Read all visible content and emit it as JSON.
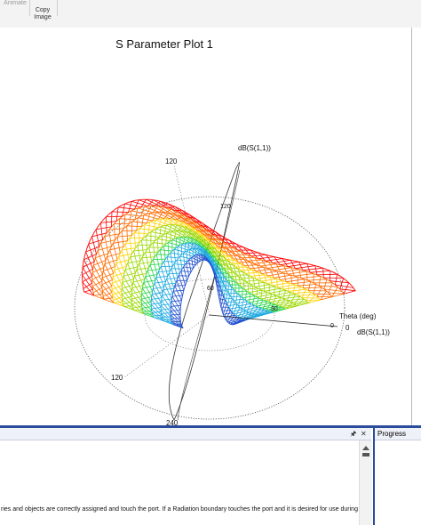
{
  "toolbar": {
    "items": [
      {
        "label": "Animate",
        "faded": true
      },
      {
        "label": "Copy\nImage",
        "faded": false
      }
    ]
  },
  "plot": {
    "title": "S Parameter Plot 1",
    "quantity_label": "dB(S(1,1))",
    "axis_label": "Theta (deg)",
    "legend_label": "dB(S(1,1))",
    "legend_value": "0",
    "tick_labels": {
      "top": "120",
      "left": "120",
      "bottom": "240",
      "inner_top": "120",
      "inner_right": "0",
      "inner_small": "60",
      "inner_right2": "30"
    },
    "colormap": [
      "#ff0000",
      "#ff6a00",
      "#ffd200",
      "#9ad800",
      "#27d54a",
      "#1aa8e0",
      "#2050d0"
    ]
  },
  "message_panel": {
    "pin_icon": "pin-icon",
    "close_icon": "close-icon",
    "text": "ries and objects are correctly assigned and touch the port.  If a Radiation boundary touches the port and it is desired for use during"
  },
  "progress_panel": {
    "title": "Progress"
  }
}
